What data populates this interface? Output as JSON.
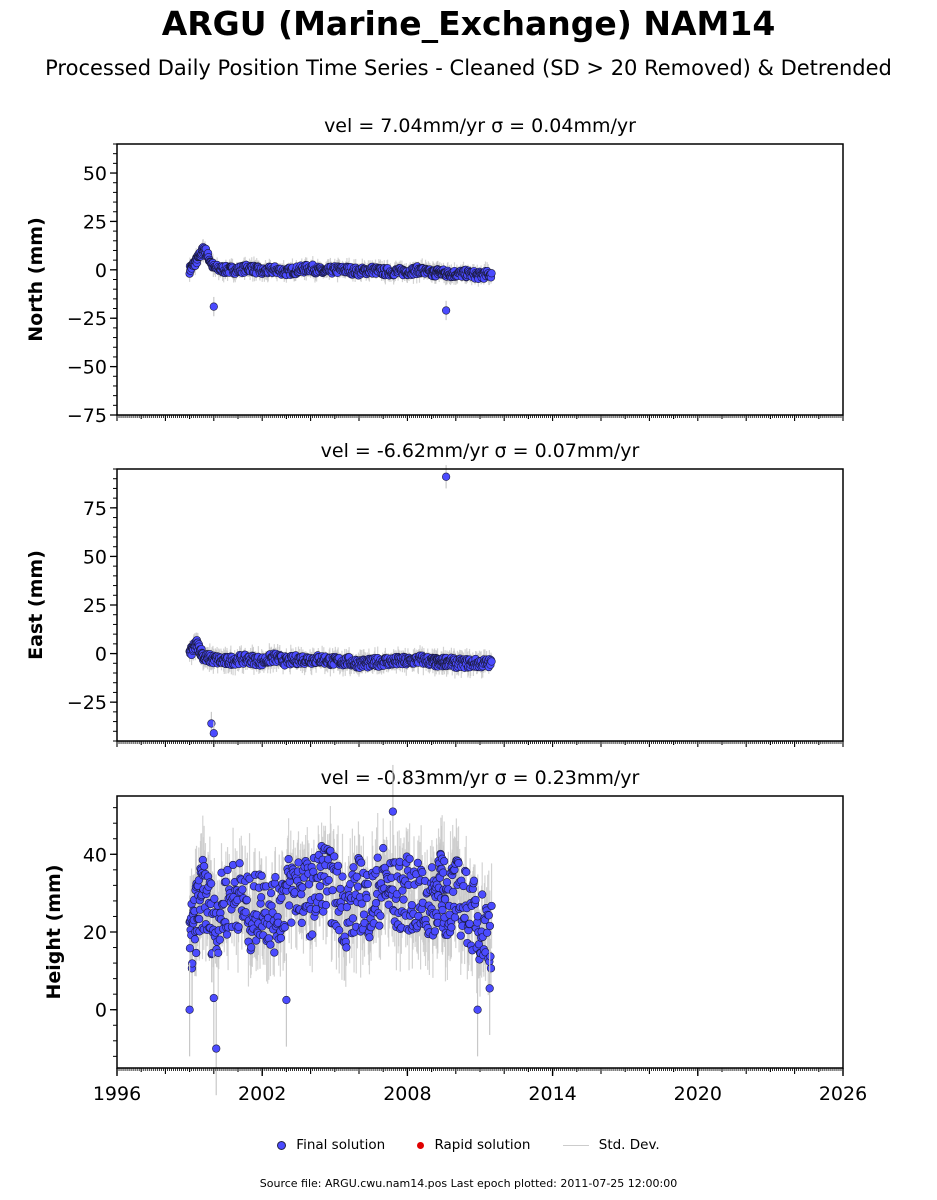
{
  "page": {
    "title": "ARGU (Marine_Exchange) NAM14",
    "subtitle": "Processed Daily Position Time Series - Cleaned (SD > 20 Removed) & Detrended",
    "footer": "Source file: ARGU.cwu.nam14.pos  Last epoch plotted: 2011-07-25 12:00:00",
    "legend": {
      "final": "Final solution",
      "rapid": "Rapid solution",
      "stddev": "Std. Dev."
    }
  },
  "colors": {
    "final_fill": "#4b4bff",
    "final_edge": "#1a1a3a",
    "rapid": "#e00000",
    "stddev": "#c8c8c8"
  },
  "chart_data": [
    {
      "type": "scatter",
      "title": "vel = 7.04mm/yr   σ = 0.04mm/yr",
      "ylabel": "North (mm)",
      "xlim": [
        1996,
        2026
      ],
      "ylim": [
        -75,
        65
      ],
      "yticks": [
        -75,
        -50,
        -25,
        0,
        25,
        50
      ],
      "xticks": [
        1996,
        2002,
        2008,
        2014,
        2020,
        2026
      ],
      "show_xticklabels": false,
      "series": [
        {
          "x": [
            1999.0,
            1999.3,
            1999.6,
            2000.0,
            2000.5,
            2001.0,
            2001.5,
            2002.0,
            2002.5,
            2003.0,
            2003.5,
            2004.0,
            2004.5,
            2005.0,
            2005.5,
            2006.0,
            2006.5,
            2007.0,
            2007.5,
            2008.0,
            2008.5,
            2009.0,
            2009.3,
            2009.6,
            2010.0,
            2010.5,
            2011.0,
            2011.5
          ],
          "y": [
            0,
            5,
            11,
            1,
            0,
            0,
            1,
            -1,
            0,
            -1,
            0,
            1,
            -1,
            0,
            0,
            -1,
            0,
            -1,
            -1,
            -1,
            0,
            -2,
            -1,
            -2,
            -2,
            -2,
            -3,
            -2
          ]
        },
        {
          "x": [
            2000.0,
            2009.6
          ],
          "y": [
            -19,
            -21
          ]
        }
      ],
      "stddev_range": 5
    },
    {
      "type": "scatter",
      "title": "vel = -6.62mm/yr   σ = 0.07mm/yr",
      "ylabel": "East (mm)",
      "xlim": [
        1996,
        2026
      ],
      "ylim": [
        -45,
        95
      ],
      "yticks": [
        -25,
        0,
        25,
        50,
        75
      ],
      "xticks": [
        1996,
        2002,
        2008,
        2014,
        2020,
        2026
      ],
      "show_xticklabels": false,
      "series": [
        {
          "x": [
            1999.0,
            1999.3,
            1999.6,
            2000.0,
            2000.5,
            2001.0,
            2001.5,
            2002.0,
            2002.5,
            2003.0,
            2003.5,
            2004.0,
            2004.5,
            2005.0,
            2005.5,
            2006.0,
            2006.5,
            2007.0,
            2007.5,
            2008.0,
            2008.5,
            2009.0,
            2009.3,
            2009.6,
            2010.0,
            2010.5,
            2011.0,
            2011.5
          ],
          "y": [
            0,
            5,
            -2,
            -3,
            -4,
            -3,
            -3,
            -4,
            -2,
            -4,
            -3,
            -3,
            -3,
            -4,
            -4,
            -5,
            -5,
            -4,
            -4,
            -4,
            -3,
            -4,
            -5,
            -4,
            -5,
            -5,
            -5,
            -5
          ]
        },
        {
          "x": [
            1999.9,
            2000.0,
            2009.6
          ],
          "y": [
            -36,
            -41,
            91
          ]
        }
      ],
      "stddev_range": 6
    },
    {
      "type": "scatter",
      "title": "vel = -0.83mm/yr   σ = 0.23mm/yr",
      "ylabel": "Height (mm)",
      "xlim": [
        1996,
        2026
      ],
      "ylim": [
        -15,
        55
      ],
      "yticks": [
        0,
        20,
        40
      ],
      "xticks": [
        1996,
        2002,
        2008,
        2014,
        2020,
        2026
      ],
      "show_xticklabels": true,
      "series": [
        {
          "x": [
            1999.0,
            1999.3,
            1999.6,
            2000.0,
            2000.5,
            2001.0,
            2001.5,
            2002.0,
            2002.5,
            2003.0,
            2003.5,
            2004.0,
            2004.5,
            2005.0,
            2005.5,
            2006.0,
            2006.5,
            2007.0,
            2007.5,
            2008.0,
            2008.5,
            2009.0,
            2009.3,
            2009.6,
            2010.0,
            2010.5,
            2011.0,
            2011.5
          ],
          "y": [
            15,
            25,
            30,
            22,
            28,
            30,
            24,
            28,
            24,
            30,
            32,
            28,
            35,
            30,
            25,
            30,
            27,
            33,
            29,
            30,
            28,
            27,
            32,
            28,
            30,
            26,
            22,
            20
          ]
        },
        {
          "x": [
            1999.0,
            2000.1,
            2000.0,
            2003.0,
            2007.4,
            2010.9,
            2011.4
          ],
          "y": [
            0,
            -10,
            3,
            2.5,
            51,
            0,
            5.5
          ]
        }
      ],
      "stddev_range": 12
    }
  ]
}
